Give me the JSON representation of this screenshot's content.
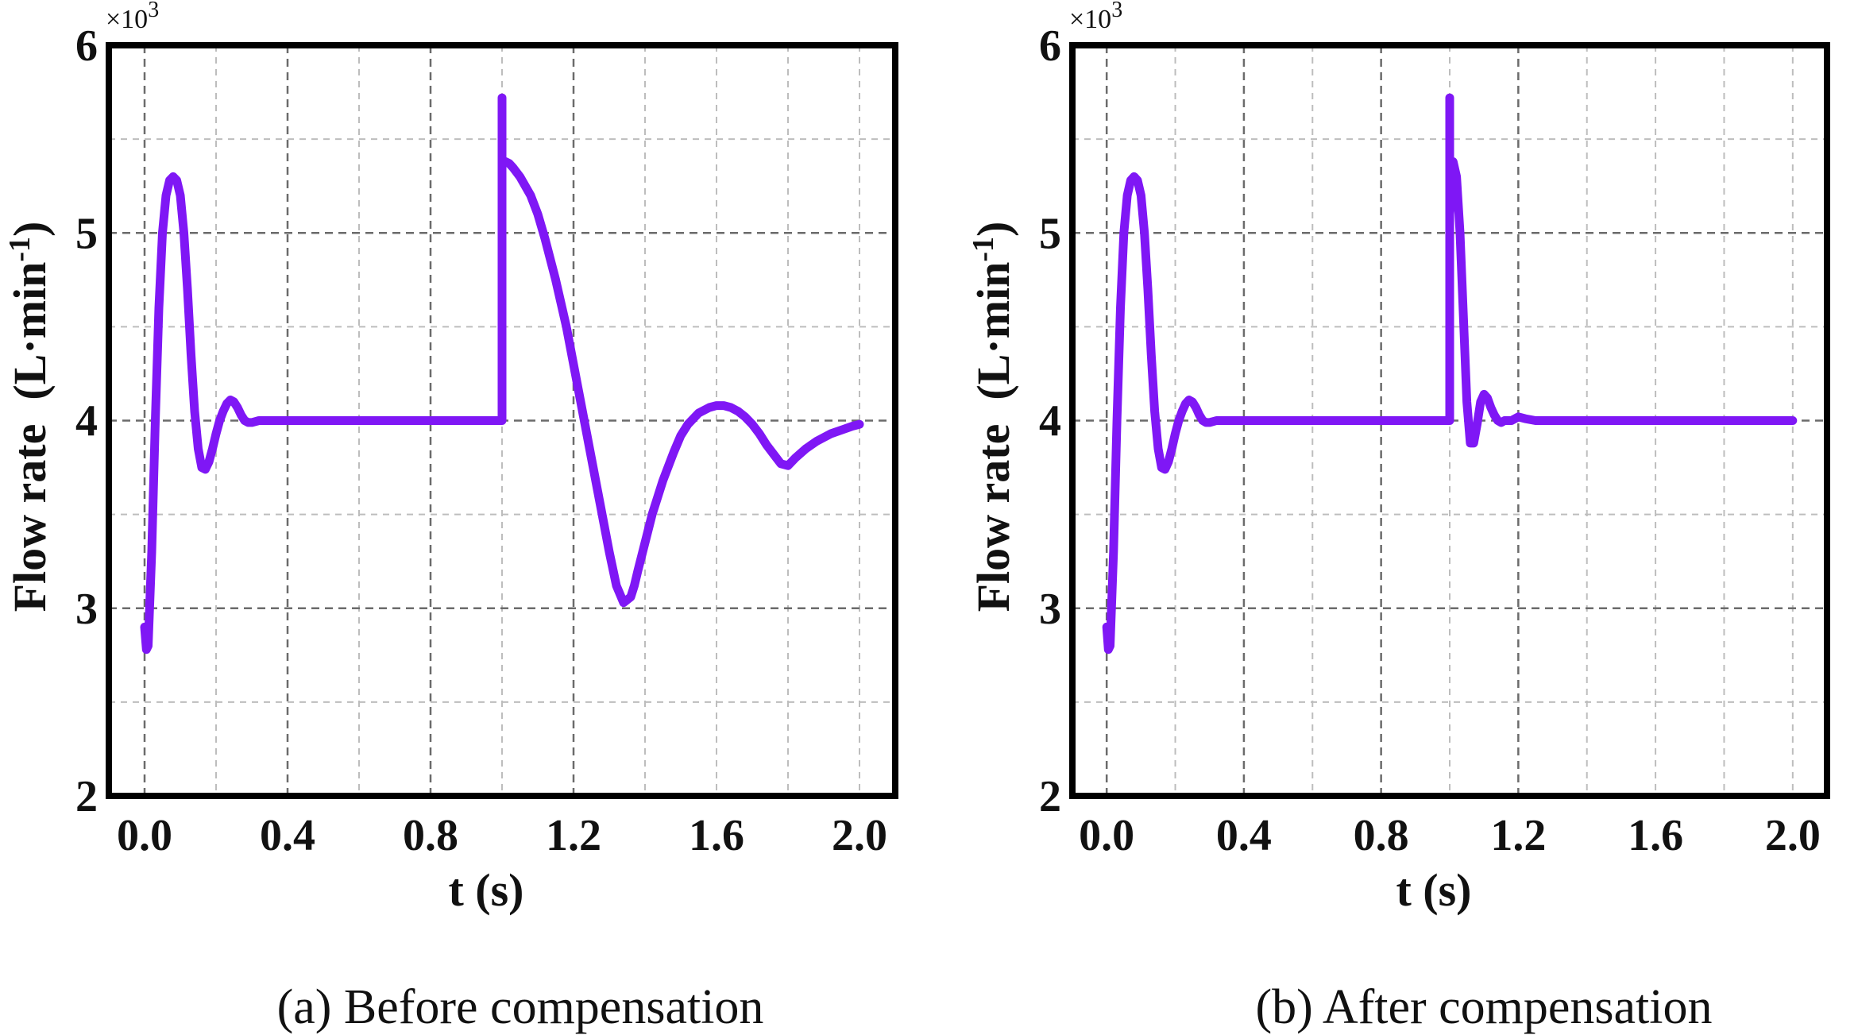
{
  "colors": {
    "series": "#7f17f5",
    "frame": "#000000",
    "grid_major": "#6b6b6b",
    "grid_minor": "#bdbdbd"
  },
  "chart_data": [
    {
      "type": "line",
      "caption": "(a) Before compensation",
      "xlabel": "t (s)",
      "ylabel_main": "Flow rate",
      "ylabel_unit_prefix": "(L·min",
      "ylabel_unit_sup": "-1",
      "ylabel_unit_suffix": ")",
      "y_multiplier_base": "×10",
      "y_multiplier_exp": "3",
      "xlim": [
        -0.1,
        2.1
      ],
      "ylim": [
        2,
        6
      ],
      "xticks": [
        0.0,
        0.4,
        0.8,
        1.2,
        1.6,
        2.0
      ],
      "xtick_labels": [
        "0.0",
        "0.4",
        "0.8",
        "1.2",
        "1.6",
        "2.0"
      ],
      "yticks": [
        2,
        3,
        4,
        5,
        6
      ],
      "ytick_labels": [
        "2",
        "3",
        "4",
        "5",
        "6"
      ],
      "grid": true,
      "series": [
        {
          "name": "Flow rate",
          "x": [
            0,
            0.005,
            0.01,
            0.02,
            0.03,
            0.04,
            0.05,
            0.06,
            0.07,
            0.08,
            0.09,
            0.1,
            0.11,
            0.12,
            0.13,
            0.14,
            0.15,
            0.16,
            0.17,
            0.18,
            0.19,
            0.2,
            0.21,
            0.22,
            0.23,
            0.24,
            0.25,
            0.26,
            0.27,
            0.28,
            0.29,
            0.3,
            0.32,
            0.34,
            0.36,
            0.38,
            0.4,
            0.5,
            0.6,
            0.7,
            0.8,
            0.9,
            0.95,
            1.0,
            1.0,
            1.0,
            1.01,
            1.02,
            1.03,
            1.05,
            1.08,
            1.1,
            1.12,
            1.15,
            1.18,
            1.2,
            1.22,
            1.25,
            1.28,
            1.3,
            1.32,
            1.34,
            1.36,
            1.37,
            1.38,
            1.4,
            1.42,
            1.45,
            1.48,
            1.5,
            1.52,
            1.55,
            1.58,
            1.6,
            1.62,
            1.64,
            1.66,
            1.68,
            1.7,
            1.72,
            1.74,
            1.76,
            1.78,
            1.8,
            1.82,
            1.85,
            1.88,
            1.9,
            1.92,
            1.95,
            1.98,
            2.0
          ],
          "y": [
            2.9,
            2.78,
            2.8,
            3.3,
            4.0,
            4.6,
            5.0,
            5.2,
            5.28,
            5.3,
            5.28,
            5.2,
            5.0,
            4.7,
            4.35,
            4.05,
            3.85,
            3.75,
            3.74,
            3.78,
            3.85,
            3.93,
            4.0,
            4.05,
            4.09,
            4.11,
            4.1,
            4.07,
            4.03,
            4.0,
            3.99,
            3.99,
            4.0,
            4.0,
            4.0,
            4.0,
            4.0,
            4.0,
            4.0,
            4.0,
            4.0,
            4.0,
            4.0,
            4.0,
            5.72,
            5.38,
            5.38,
            5.37,
            5.35,
            5.3,
            5.2,
            5.1,
            4.97,
            4.75,
            4.5,
            4.3,
            4.1,
            3.8,
            3.5,
            3.3,
            3.12,
            3.03,
            3.06,
            3.12,
            3.2,
            3.35,
            3.5,
            3.68,
            3.83,
            3.92,
            3.98,
            4.04,
            4.07,
            4.08,
            4.08,
            4.07,
            4.05,
            4.02,
            3.98,
            3.93,
            3.87,
            3.82,
            3.77,
            3.76,
            3.8,
            3.85,
            3.89,
            3.91,
            3.93,
            3.95,
            3.97,
            3.98
          ]
        }
      ]
    },
    {
      "type": "line",
      "caption": "(b) After compensation",
      "xlabel": "t (s)",
      "ylabel_main": "Flow rate",
      "ylabel_unit_prefix": "(L·min",
      "ylabel_unit_sup": "-1",
      "ylabel_unit_suffix": ")",
      "y_multiplier_base": "×10",
      "y_multiplier_exp": "3",
      "xlim": [
        -0.1,
        2.1
      ],
      "ylim": [
        2,
        6
      ],
      "xticks": [
        0.0,
        0.4,
        0.8,
        1.2,
        1.6,
        2.0
      ],
      "xtick_labels": [
        "0.0",
        "0.4",
        "0.8",
        "1.2",
        "1.6",
        "2.0"
      ],
      "yticks": [
        2,
        3,
        4,
        5,
        6
      ],
      "ytick_labels": [
        "2",
        "3",
        "4",
        "5",
        "6"
      ],
      "grid": true,
      "series": [
        {
          "name": "Flow rate",
          "x": [
            0,
            0.005,
            0.01,
            0.02,
            0.03,
            0.04,
            0.05,
            0.06,
            0.07,
            0.08,
            0.09,
            0.1,
            0.11,
            0.12,
            0.13,
            0.14,
            0.15,
            0.16,
            0.17,
            0.18,
            0.19,
            0.2,
            0.21,
            0.22,
            0.23,
            0.24,
            0.25,
            0.26,
            0.27,
            0.28,
            0.29,
            0.3,
            0.32,
            0.34,
            0.36,
            0.38,
            0.4,
            0.5,
            0.6,
            0.7,
            0.8,
            0.9,
            0.95,
            1.0,
            1.0,
            1.0,
            1.01,
            1.02,
            1.03,
            1.04,
            1.05,
            1.06,
            1.07,
            1.08,
            1.09,
            1.1,
            1.11,
            1.12,
            1.13,
            1.14,
            1.15,
            1.16,
            1.18,
            1.2,
            1.22,
            1.25,
            1.3,
            1.4,
            1.6,
            1.8,
            2.0
          ],
          "y": [
            2.9,
            2.78,
            2.8,
            3.3,
            4.0,
            4.6,
            5.0,
            5.2,
            5.28,
            5.3,
            5.28,
            5.2,
            5.0,
            4.7,
            4.35,
            4.05,
            3.85,
            3.75,
            3.74,
            3.78,
            3.85,
            3.93,
            4.0,
            4.05,
            4.09,
            4.11,
            4.1,
            4.07,
            4.03,
            4.0,
            3.99,
            3.99,
            4.0,
            4.0,
            4.0,
            4.0,
            4.0,
            4.0,
            4.0,
            4.0,
            4.0,
            4.0,
            4.0,
            4.0,
            5.72,
            5.1,
            5.38,
            5.3,
            5.0,
            4.55,
            4.1,
            3.88,
            3.88,
            3.98,
            4.1,
            4.14,
            4.12,
            4.07,
            4.03,
            4.0,
            3.99,
            4.0,
            4.0,
            4.02,
            4.01,
            4.0,
            4.0,
            4.0,
            4.0,
            4.0,
            4.0
          ]
        }
      ]
    }
  ]
}
